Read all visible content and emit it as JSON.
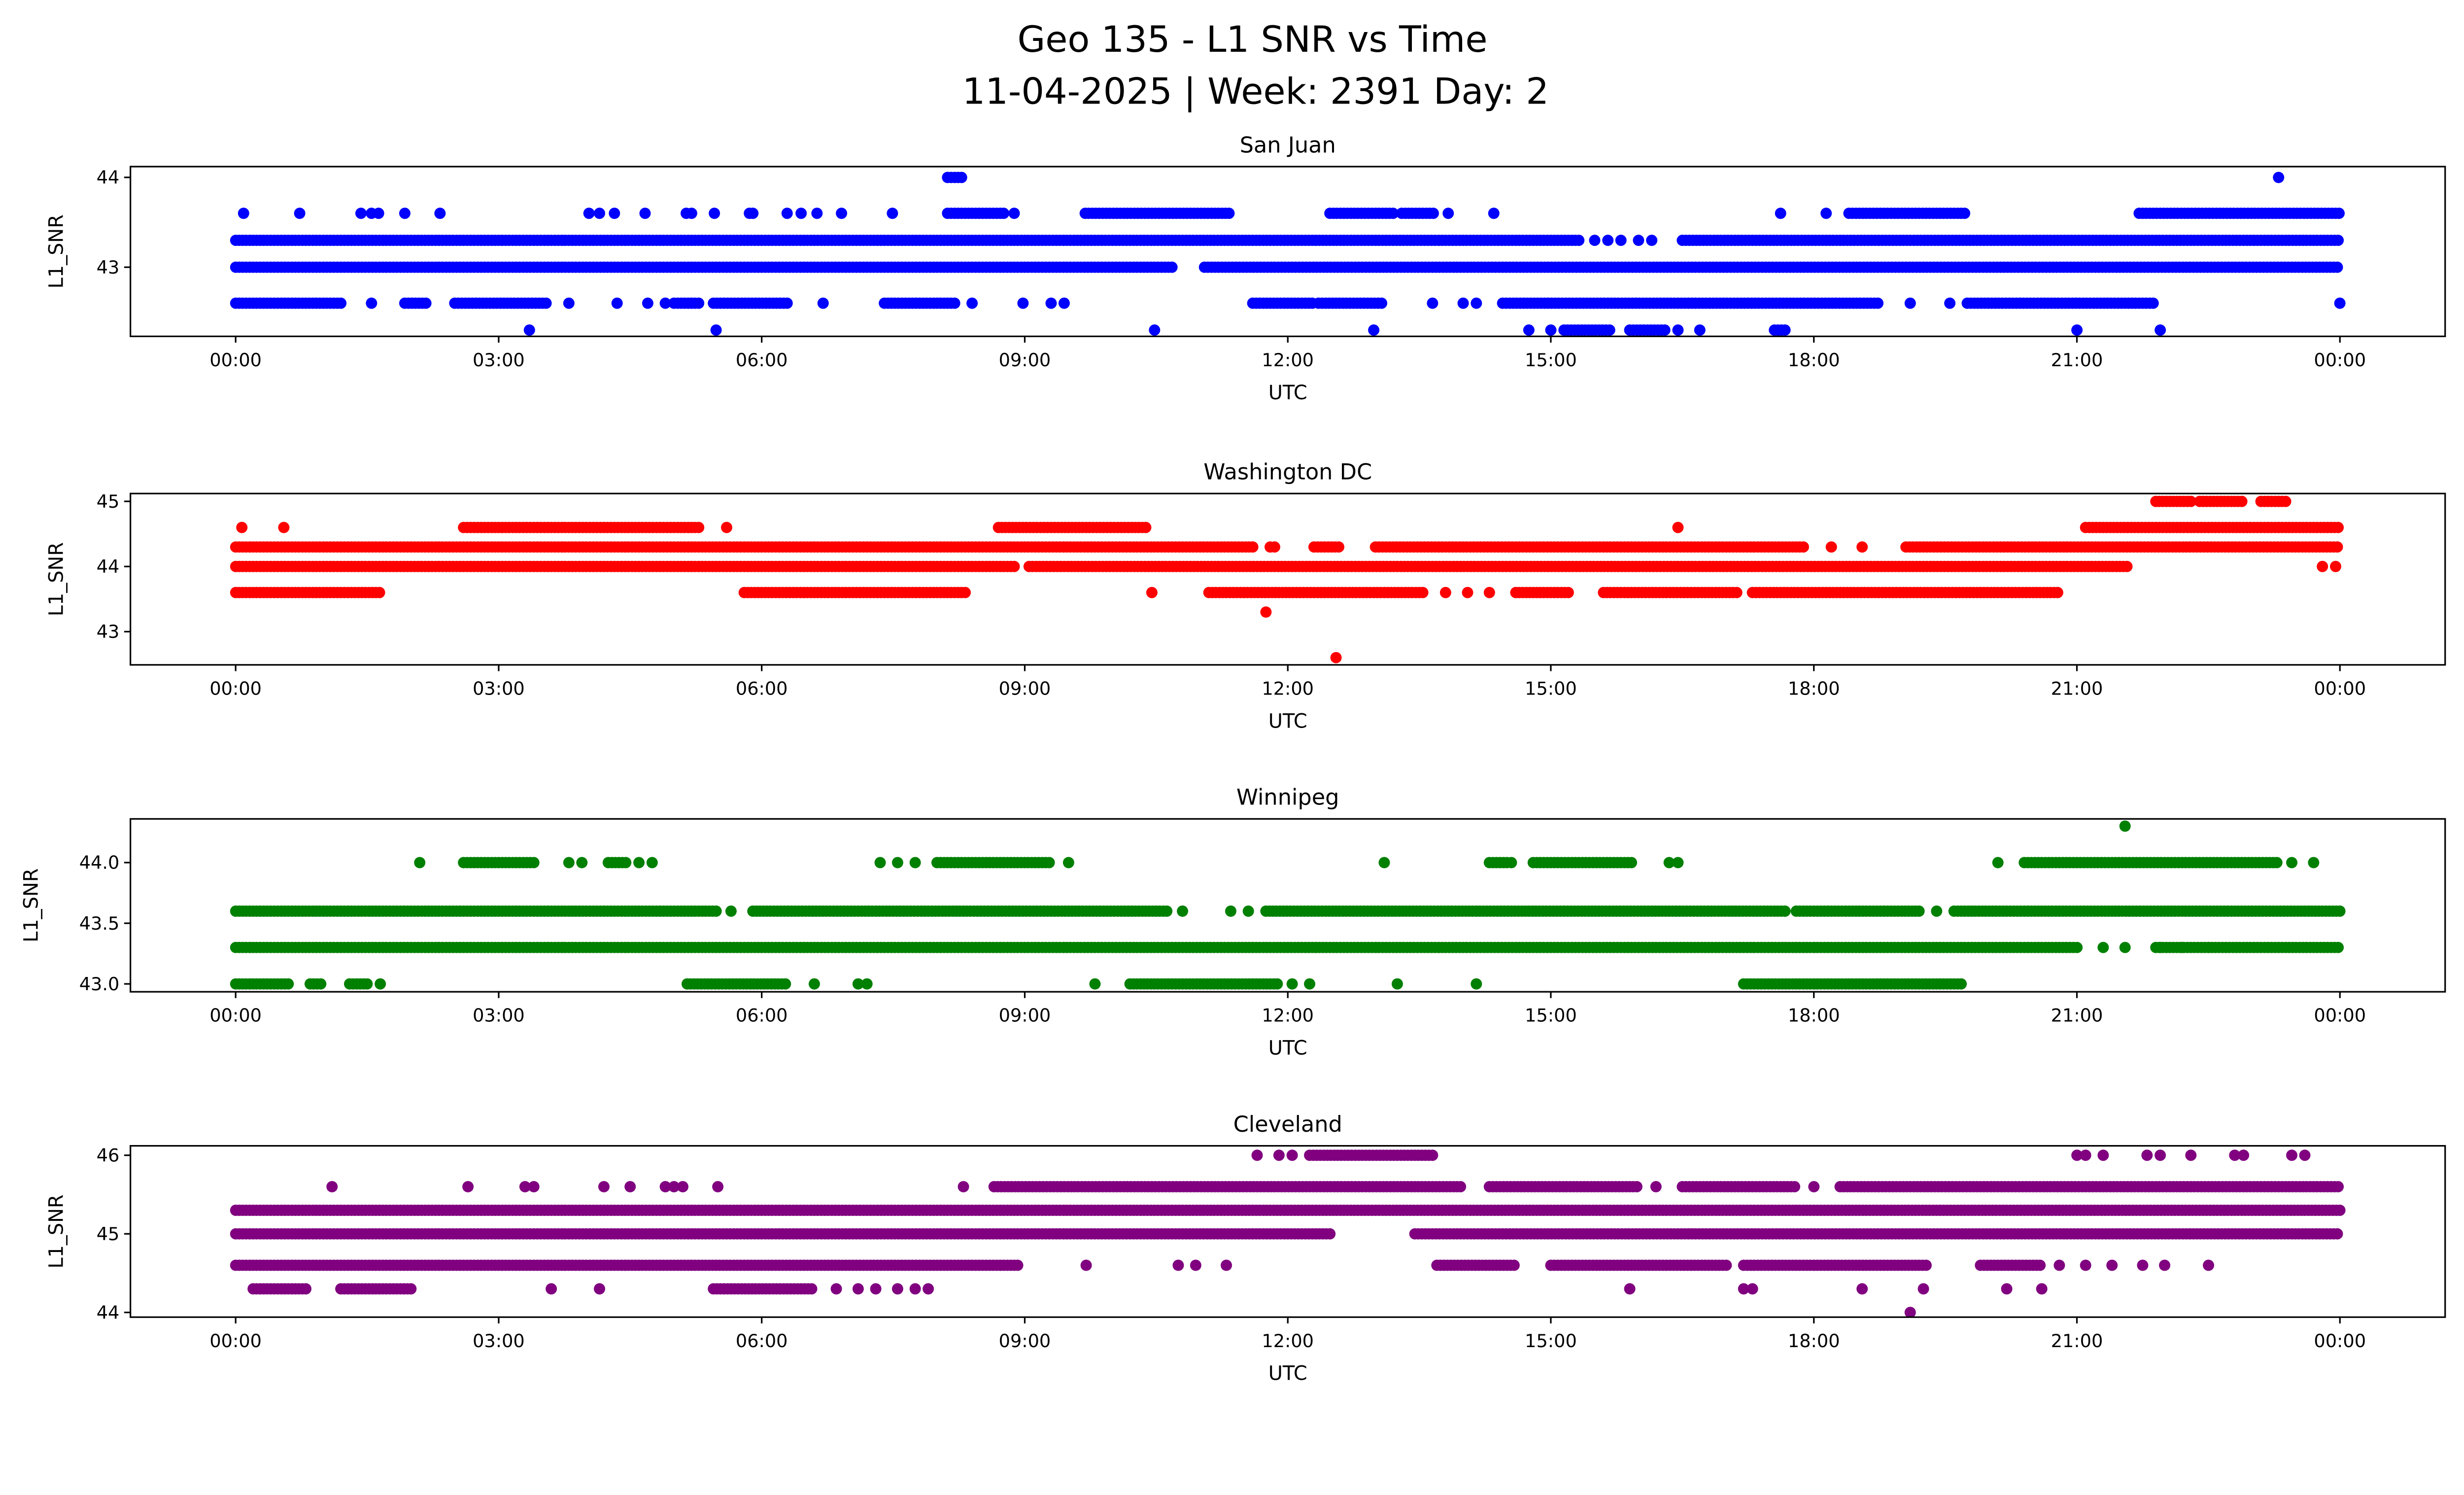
{
  "title_line1": "Geo 135 - L1 SNR vs Time",
  "title_line2": "11-04-2025 | Week: 2391 Day: 2",
  "chart_data": [
    {
      "type": "scatter",
      "title": "San Juan",
      "xlabel": "UTC",
      "ylabel": "L1_SNR",
      "color": "#0000ff",
      "xlim": [
        -1.2,
        25.2
      ],
      "ylim": [
        42.23,
        44.12
      ],
      "xticks": [
        0,
        3,
        6,
        9,
        12,
        15,
        18,
        21,
        24
      ],
      "xtick_labels": [
        "00:00",
        "03:00",
        "06:00",
        "09:00",
        "12:00",
        "15:00",
        "18:00",
        "21:00",
        "00:00"
      ],
      "yticks": [
        43,
        44
      ],
      "ytick_labels": [
        "43",
        "44"
      ],
      "levels": [
        {
          "y": 44.0,
          "ranges": [
            [
              8.12,
              8.3
            ]
          ],
          "points": [
            23.3
          ]
        },
        {
          "y": 43.6,
          "ranges": [
            [
              8.12,
              8.79
            ],
            [
              9.69,
              11.36
            ],
            [
              12.48,
              13.2
            ],
            [
              13.3,
              13.67
            ],
            [
              18.4,
              19.72
            ],
            [
              21.71,
              24
            ]
          ],
          "points": [
            0.09,
            0.73,
            1.43,
            1.55,
            1.63,
            1.93,
            2.33,
            4.03,
            4.15,
            4.32,
            4.67,
            5.14,
            5.2,
            5.46,
            5.86,
            5.9,
            6.29,
            6.45,
            6.63,
            6.91,
            7.49,
            8.88,
            13.83,
            14.35,
            17.62,
            18.14
          ]
        },
        {
          "y": 43.3,
          "ranges": [
            [
              0,
              15.33
            ],
            [
              16.5,
              24
            ]
          ],
          "points": [
            15.5,
            15.65,
            15.8,
            16.0,
            16.15
          ]
        },
        {
          "y": 43.0,
          "ranges": [
            [
              0,
              10.7
            ],
            [
              11.05,
              24
            ]
          ],
          "points": []
        },
        {
          "y": 42.6,
          "ranges": [
            [
              0,
              1.2
            ],
            [
              1.93,
              2.2
            ],
            [
              2.5,
              3.55
            ],
            [
              5.0,
              5.3
            ],
            [
              5.45,
              6.3
            ],
            [
              7.4,
              8.2
            ],
            [
              11.6,
              12.3
            ],
            [
              12.35,
              13.1
            ],
            [
              14.45,
              18.75
            ],
            [
              19.75,
              21.9
            ]
          ],
          "points": [
            1.55,
            3.8,
            4.35,
            4.7,
            4.9,
            6.7,
            8.4,
            8.98,
            9.3,
            9.45,
            13.65,
            14.0,
            14.15,
            19.1,
            19.55,
            24
          ]
        },
        {
          "y": 42.3,
          "ranges": [
            [
              15.15,
              15.7
            ],
            [
              15.9,
              16.3
            ],
            [
              17.55,
              17.7
            ]
          ],
          "points": [
            3.35,
            5.48,
            10.48,
            12.98,
            14.75,
            15.0,
            16.45,
            16.7,
            21.0,
            21.95
          ]
        }
      ]
    },
    {
      "type": "scatter",
      "title": "Washington DC",
      "xlabel": "UTC",
      "ylabel": "L1_SNR",
      "color": "#ff0000",
      "xlim": [
        -1.2,
        25.2
      ],
      "ylim": [
        42.49,
        45.12
      ],
      "xticks": [
        0,
        3,
        6,
        9,
        12,
        15,
        18,
        21,
        24
      ],
      "xtick_labels": [
        "00:00",
        "03:00",
        "06:00",
        "09:00",
        "12:00",
        "15:00",
        "18:00",
        "21:00",
        "00:00"
      ],
      "yticks": [
        43,
        44,
        45
      ],
      "ytick_labels": [
        "43",
        "44",
        "45"
      ],
      "levels": [
        {
          "y": 45.0,
          "ranges": [
            [
              21.9,
              22.3
            ],
            [
              22.4,
              22.9
            ],
            [
              23.1,
              23.4
            ]
          ],
          "points": []
        },
        {
          "y": 44.6,
          "ranges": [
            [
              2.6,
              5.3
            ],
            [
              8.7,
              10.4
            ],
            [
              21.1,
              24
            ]
          ],
          "points": [
            0.07,
            0.55,
            5.6,
            16.45
          ]
        },
        {
          "y": 44.3,
          "ranges": [
            [
              0,
              11.6
            ],
            [
              12.3,
              12.6
            ],
            [
              13.0,
              17.9
            ],
            [
              19.05,
              24
            ]
          ],
          "points": [
            11.8,
            11.85,
            18.2,
            18.55
          ]
        },
        {
          "y": 44.0,
          "ranges": [
            [
              0,
              8.9
            ],
            [
              9.05,
              21.6
            ]
          ],
          "points": [
            23.8,
            23.95
          ]
        },
        {
          "y": 43.6,
          "ranges": [
            [
              0,
              1.65
            ],
            [
              5.8,
              8.35
            ],
            [
              11.1,
              13.55
            ],
            [
              14.6,
              15.2
            ],
            [
              15.6,
              17.15
            ],
            [
              17.3,
              20.8
            ]
          ],
          "points": [
            10.45,
            13.8,
            14.05,
            14.3
          ]
        },
        {
          "y": 43.3,
          "ranges": [],
          "points": [
            11.75
          ]
        },
        {
          "y": 42.6,
          "ranges": [],
          "points": [
            12.55
          ]
        }
      ]
    },
    {
      "type": "scatter",
      "title": "Winnipeg",
      "xlabel": "UTC",
      "ylabel": "L1_SNR",
      "color": "#008000",
      "xlim": [
        -1.2,
        25.2
      ],
      "ylim": [
        42.935,
        44.36
      ],
      "xticks": [
        0,
        3,
        6,
        9,
        12,
        15,
        18,
        21,
        24
      ],
      "xtick_labels": [
        "00:00",
        "03:00",
        "06:00",
        "09:00",
        "12:00",
        "15:00",
        "18:00",
        "21:00",
        "00:00"
      ],
      "yticks": [
        43.0,
        43.5,
        44.0
      ],
      "ytick_labels": [
        "43.0",
        "43.5",
        "44.0"
      ],
      "levels": [
        {
          "y": 44.3,
          "ranges": [],
          "points": [
            21.55
          ]
        },
        {
          "y": 44.0,
          "ranges": [
            [
              2.6,
              3.4
            ],
            [
              4.25,
              4.45
            ],
            [
              8.0,
              9.3
            ],
            [
              14.3,
              14.5
            ],
            [
              14.8,
              15.95
            ],
            [
              20.4,
              23.3
            ]
          ],
          "points": [
            2.1,
            3.8,
            3.95,
            4.6,
            4.75,
            7.35,
            7.55,
            7.75,
            9.5,
            13.1,
            14.55,
            16.35,
            16.45,
            20.1,
            23.45,
            23.7
          ]
        },
        {
          "y": 43.6,
          "ranges": [
            [
              0,
              5.5
            ],
            [
              5.9,
              10.65
            ],
            [
              11.75,
              17.7
            ],
            [
              17.8,
              19.2
            ],
            [
              19.6,
              24
            ]
          ],
          "points": [
            5.65,
            10.8,
            11.35,
            11.55,
            19.4
          ]
        },
        {
          "y": 43.3,
          "ranges": [
            [
              0,
              21.0
            ],
            [
              21.9,
              24
            ]
          ],
          "points": [
            21.3,
            21.55,
            21.95,
            22.2,
            22.5
          ]
        },
        {
          "y": 43.0,
          "ranges": [
            [
              0,
              0.6
            ],
            [
              0.85,
              1.0
            ],
            [
              1.3,
              1.5
            ],
            [
              5.15,
              6.3
            ],
            [
              10.2,
              11.9
            ],
            [
              17.2,
              19.7
            ]
          ],
          "points": [
            1.65,
            6.6,
            7.1,
            7.2,
            9.8,
            12.05,
            12.25,
            13.25,
            14.15
          ]
        }
      ]
    },
    {
      "type": "scatter",
      "title": "Cleveland",
      "xlabel": "UTC",
      "ylabel": "L1_SNR",
      "color": "#800080",
      "xlim": [
        -1.2,
        25.2
      ],
      "ylim": [
        43.94,
        46.12
      ],
      "xticks": [
        0,
        3,
        6,
        9,
        12,
        15,
        18,
        21,
        24
      ],
      "xtick_labels": [
        "00:00",
        "03:00",
        "06:00",
        "09:00",
        "12:00",
        "15:00",
        "18:00",
        "21:00",
        "00:00"
      ],
      "yticks": [
        44,
        45,
        46
      ],
      "ytick_labels": [
        "44",
        "45",
        "46"
      ],
      "levels": [
        {
          "y": 46.0,
          "ranges": [
            [
              12.25,
              13.65
            ]
          ],
          "points": [
            11.65,
            11.9,
            12.05,
            21.0,
            21.1,
            21.3,
            21.8,
            21.95,
            22.3,
            22.8,
            22.9,
            23.45,
            23.6
          ]
        },
        {
          "y": 45.6,
          "ranges": [
            [
              8.65,
              14.0
            ],
            [
              14.3,
              16.0
            ],
            [
              16.5,
              17.8
            ],
            [
              18.3,
              24
            ]
          ],
          "points": [
            1.1,
            2.65,
            3.3,
            3.4,
            4.2,
            4.5,
            4.9,
            5.0,
            5.1,
            5.5,
            8.3,
            16.2,
            18.0
          ]
        },
        {
          "y": 45.3,
          "ranges": [
            [
              0,
              24
            ]
          ],
          "points": []
        },
        {
          "y": 45.0,
          "ranges": [
            [
              0,
              12.5
            ],
            [
              13.45,
              24
            ]
          ],
          "points": []
        },
        {
          "y": 44.6,
          "ranges": [
            [
              0,
              8.95
            ],
            [
              13.7,
              14.6
            ],
            [
              15.0,
              17.0
            ],
            [
              17.2,
              19.3
            ],
            [
              19.9,
              20.6
            ]
          ],
          "points": [
            9.7,
            10.75,
            10.95,
            11.3,
            20.8,
            21.1,
            21.4,
            21.75,
            22.0,
            22.5
          ]
        },
        {
          "y": 44.3,
          "ranges": [
            [
              0.2,
              0.8
            ],
            [
              1.2,
              2.0
            ],
            [
              5.45,
              6.6
            ]
          ],
          "points": [
            3.6,
            4.15,
            6.85,
            7.1,
            7.3,
            7.55,
            7.75,
            7.9,
            15.9,
            17.2,
            17.3,
            18.55,
            19.25,
            20.2,
            20.6
          ]
        },
        {
          "y": 44.0,
          "ranges": [],
          "points": [
            19.1
          ]
        }
      ]
    }
  ]
}
